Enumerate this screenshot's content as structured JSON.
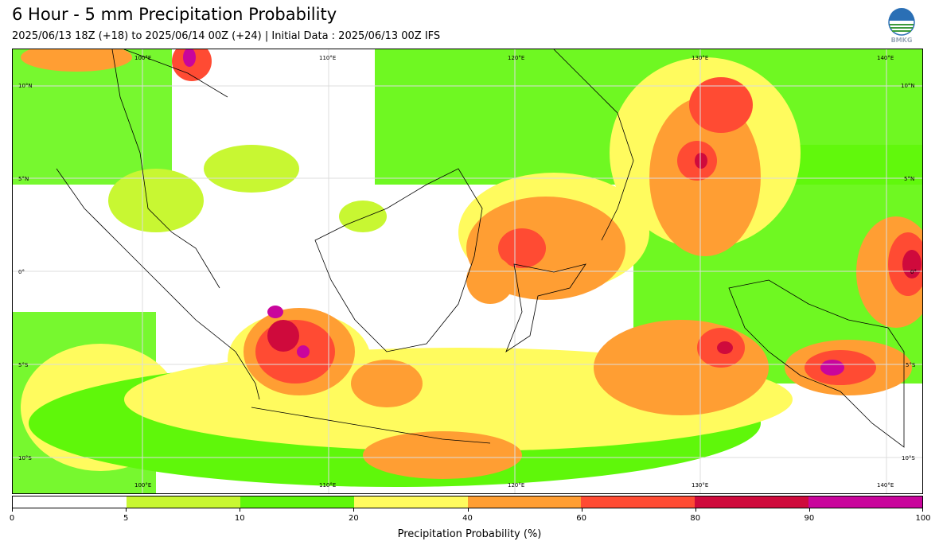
{
  "header": {
    "title": "6 Hour - 5 mm Precipitation Probability",
    "subtitle": "2025/06/13 18Z (+18) to 2025/06/14 00Z (+24) | Initial Data : 2025/06/13 00Z IFS",
    "logo_text": "BMKG"
  },
  "map": {
    "lon_labels": [
      "100°E",
      "110°E",
      "120°E",
      "130°E",
      "140°E"
    ],
    "lat_labels": [
      "10°N",
      "5°N",
      "0°",
      "5°S",
      "10°S"
    ]
  },
  "colorbar": {
    "label": "Precipitation Probability (%)",
    "ticks": [
      "0",
      "5",
      "10",
      "20",
      "40",
      "60",
      "80",
      "90",
      "100"
    ],
    "colors": [
      "#ffffff",
      "#c8f732",
      "#5ff70a",
      "#fffb5e",
      "#ff9e33",
      "#ff4b33",
      "#cf0a3c",
      "#c9059c"
    ]
  }
}
